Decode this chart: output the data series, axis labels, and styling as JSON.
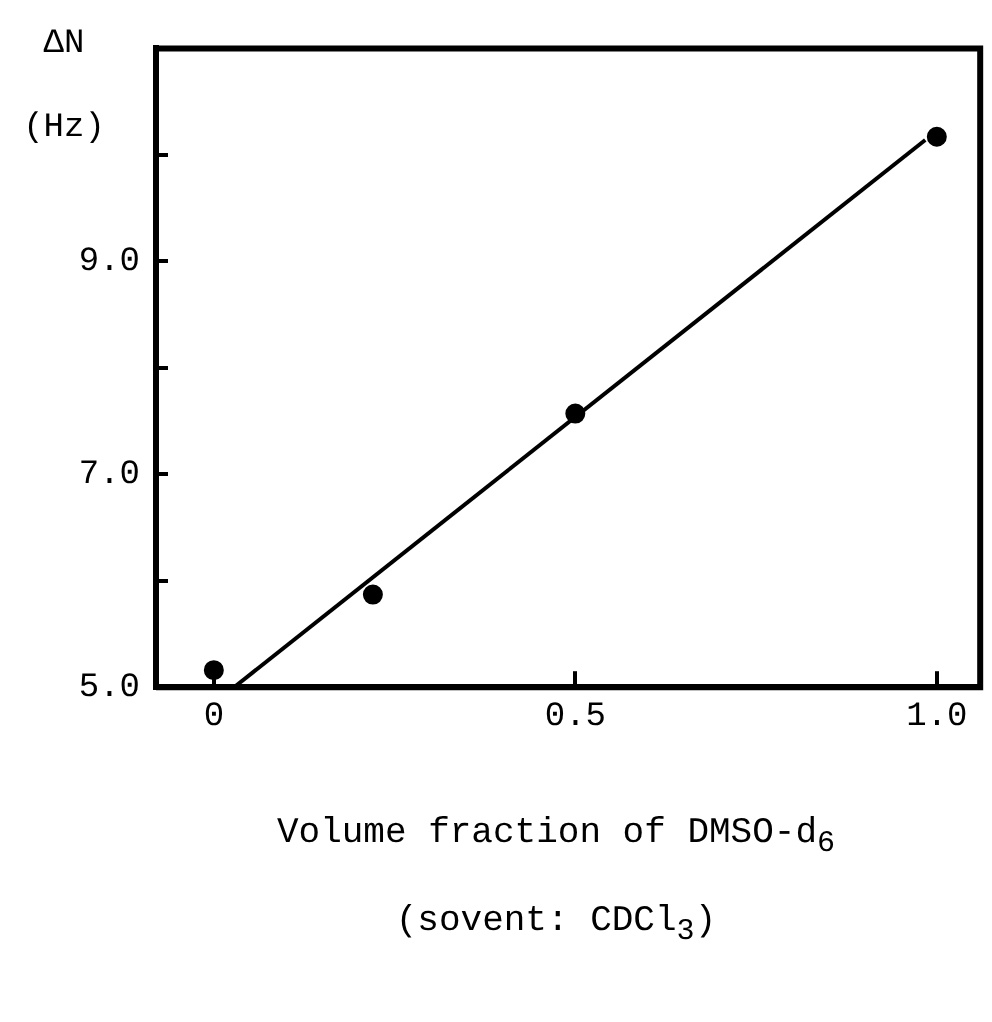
{
  "chart_data": {
    "type": "scatter",
    "xlabel": "Volume fraction of DMSO-d$_{6}$",
    "annotations": [
      "(sovent: CDCl$_{3}$)"
    ],
    "ylabel": "ΔN (Hz)",
    "x": [
      0,
      0.22,
      0.5,
      1.0
    ],
    "values": [
      5.16,
      5.87,
      7.57,
      10.17
    ],
    "color": "#000000",
    "marker": "circle",
    "series": [
      {
        "type": "line",
        "x": [
          0.028,
          0.984
        ],
        "values": [
          5.0,
          10.14
        ],
        "color": "#000000",
        "line_style": "solid",
        "marker": "none"
      }
    ],
    "xlim": [
      -0.08,
      1.06
    ],
    "xticks": [
      0,
      0.5,
      {
        "value": 1,
        "label": "1.0"
      }
    ],
    "ylim": [
      5.0,
      11.0
    ],
    "yticks": [
      {
        "value": 5,
        "label": "5.0"
      },
      {
        "value": 6,
        "label": null
      },
      {
        "value": 7,
        "label": "7.0"
      },
      {
        "value": 8,
        "label": null
      },
      {
        "value": 9,
        "label": "9.0"
      },
      {
        "value": 10,
        "label": null
      }
    ],
    "grid": false,
    "legend": false
  }
}
